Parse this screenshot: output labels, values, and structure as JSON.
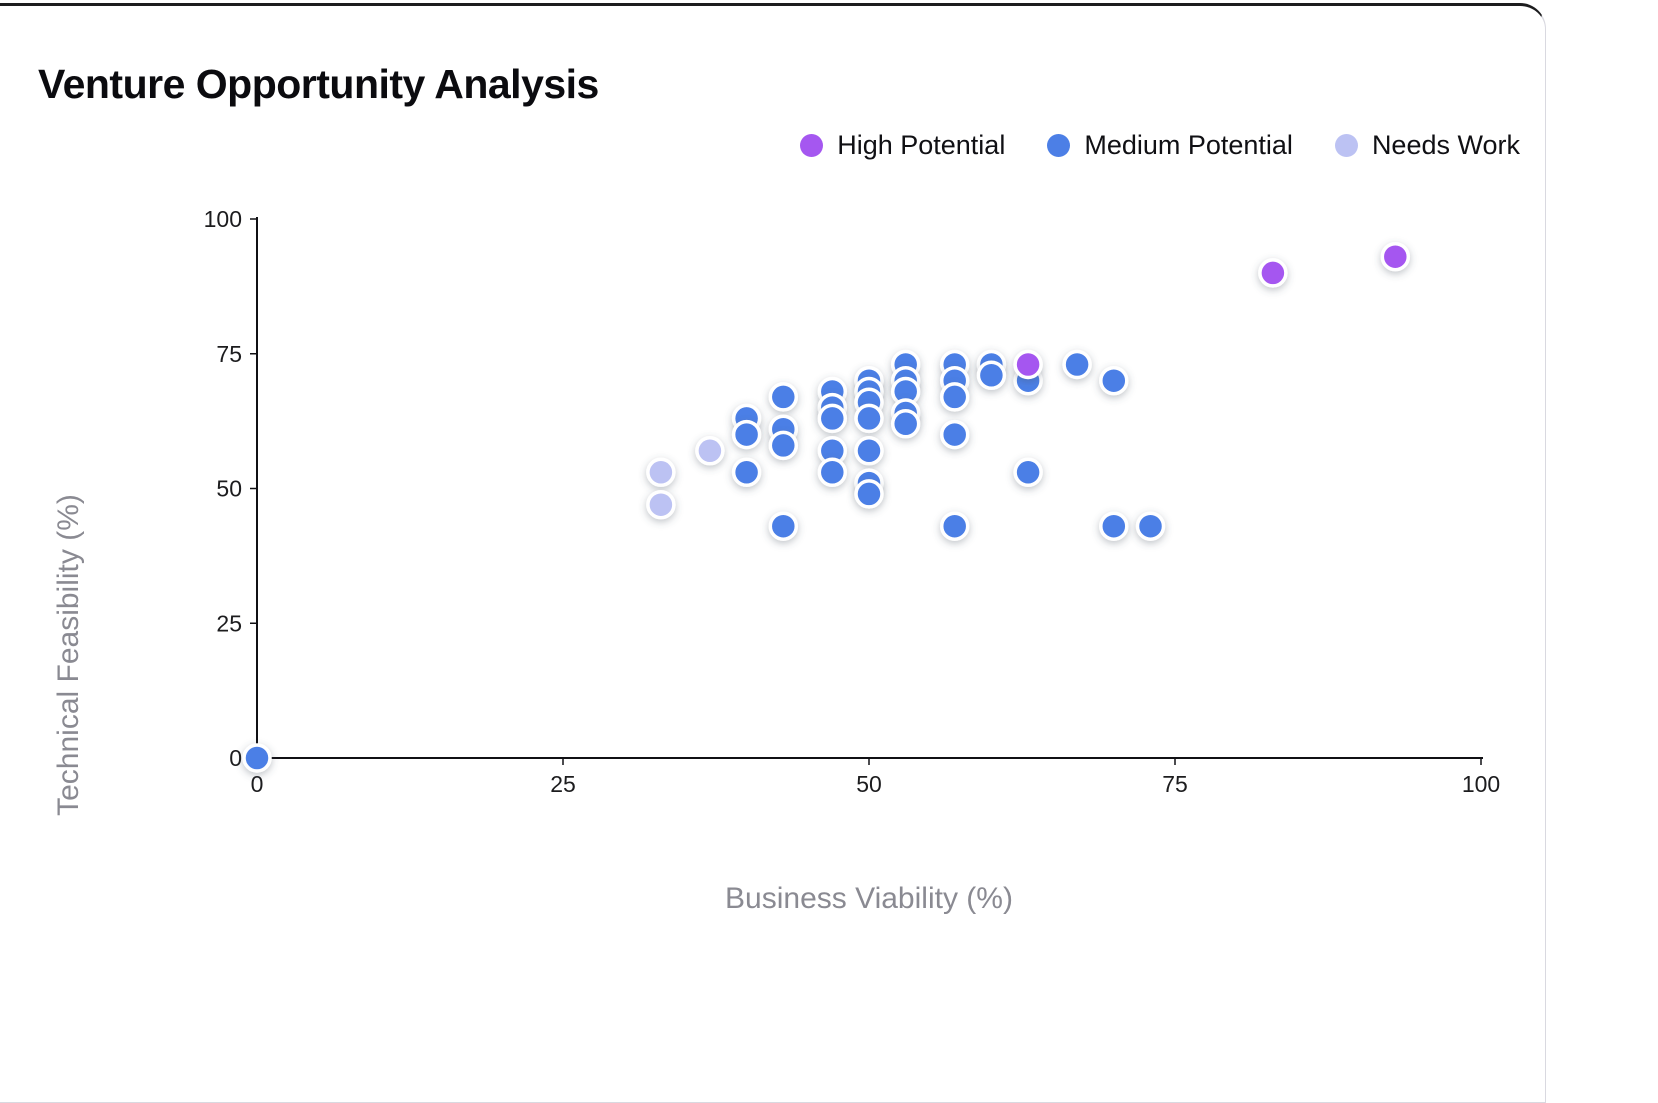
{
  "card": {
    "title": "Venture Opportunity Analysis"
  },
  "legend": {
    "items": [
      {
        "label": "High Potential",
        "color": "#a557f0"
      },
      {
        "label": "Medium Potential",
        "color": "#4c7fe6"
      },
      {
        "label": "Needs Work",
        "color": "#bcc2f3"
      }
    ]
  },
  "chart_data": {
    "type": "scatter",
    "title": "Venture Opportunity Analysis",
    "xlabel": "Business Viability (%)",
    "ylabel": "Technical Feasibility (%)",
    "xlim": [
      0,
      100
    ],
    "ylim": [
      0,
      100
    ],
    "xticks": [
      0,
      25,
      50,
      75,
      100
    ],
    "yticks": [
      0,
      25,
      50,
      75,
      100
    ],
    "grid": false,
    "legend_position": "top-right",
    "marker_radius": 13,
    "series": [
      {
        "name": "Medium Potential",
        "color": "#4c7fe6",
        "points": [
          [
            0,
            0
          ],
          [
            40,
            63
          ],
          [
            40,
            60
          ],
          [
            40,
            53
          ],
          [
            43,
            67
          ],
          [
            43,
            61
          ],
          [
            43,
            58
          ],
          [
            43,
            43
          ],
          [
            47,
            68
          ],
          [
            47,
            65
          ],
          [
            47,
            63
          ],
          [
            47,
            57
          ],
          [
            47,
            53
          ],
          [
            50,
            70
          ],
          [
            50,
            68
          ],
          [
            50,
            66
          ],
          [
            50,
            63
          ],
          [
            50,
            57
          ],
          [
            50,
            51
          ],
          [
            50,
            49
          ],
          [
            53,
            73
          ],
          [
            53,
            70
          ],
          [
            53,
            68
          ],
          [
            53,
            64
          ],
          [
            53,
            62
          ],
          [
            57,
            73
          ],
          [
            57,
            70
          ],
          [
            57,
            67
          ],
          [
            57,
            60
          ],
          [
            57,
            43
          ],
          [
            60,
            73
          ],
          [
            60,
            71
          ],
          [
            63,
            70
          ],
          [
            63,
            53
          ],
          [
            67,
            73
          ],
          [
            70,
            70
          ],
          [
            70,
            43
          ],
          [
            73,
            43
          ]
        ]
      },
      {
        "name": "Needs Work",
        "color": "#bcc2f3",
        "points": [
          [
            33,
            53
          ],
          [
            33,
            47
          ],
          [
            37,
            57
          ]
        ]
      },
      {
        "name": "High Potential",
        "color": "#a557f0",
        "points": [
          [
            63,
            73
          ],
          [
            83,
            90
          ],
          [
            93,
            93
          ]
        ]
      }
    ]
  }
}
